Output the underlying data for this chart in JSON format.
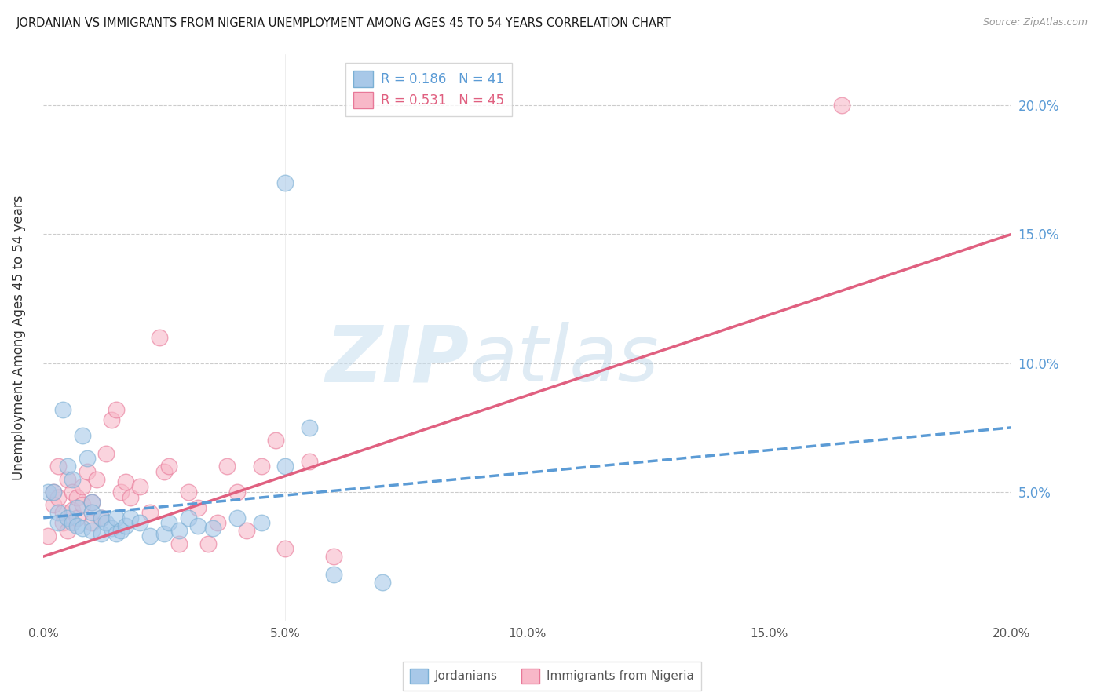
{
  "title": "JORDANIAN VS IMMIGRANTS FROM NIGERIA UNEMPLOYMENT AMONG AGES 45 TO 54 YEARS CORRELATION CHART",
  "source": "Source: ZipAtlas.com",
  "ylabel": "Unemployment Among Ages 45 to 54 years",
  "xlim": [
    0.0,
    0.2
  ],
  "ylim": [
    0.0,
    0.22
  ],
  "watermark_zip": "ZIP",
  "watermark_atlas": "atlas",
  "jordanian_color": "#a8c8e8",
  "jordan_edge_color": "#7aafd4",
  "nigeria_color": "#f8b8c8",
  "nigeria_edge_color": "#e87898",
  "trend_jordan_color": "#5b9bd5",
  "trend_nigeria_color": "#e06080",
  "jordanian_R": "0.186",
  "jordanian_N": "41",
  "nigeria_R": "0.531",
  "nigeria_N": "45",
  "trend_jordan_x0": 0.0,
  "trend_jordan_y0": 0.04,
  "trend_jordan_x1": 0.2,
  "trend_jordan_y1": 0.075,
  "trend_nigeria_x0": 0.0,
  "trend_nigeria_y0": 0.025,
  "trend_nigeria_x1": 0.2,
  "trend_nigeria_y1": 0.15,
  "jordanian_points": [
    [
      0.001,
      0.05
    ],
    [
      0.002,
      0.05
    ],
    [
      0.003,
      0.042
    ],
    [
      0.003,
      0.038
    ],
    [
      0.004,
      0.082
    ],
    [
      0.005,
      0.06
    ],
    [
      0.005,
      0.04
    ],
    [
      0.006,
      0.038
    ],
    [
      0.006,
      0.055
    ],
    [
      0.007,
      0.044
    ],
    [
      0.007,
      0.037
    ],
    [
      0.008,
      0.072
    ],
    [
      0.008,
      0.036
    ],
    [
      0.009,
      0.063
    ],
    [
      0.01,
      0.035
    ],
    [
      0.01,
      0.046
    ],
    [
      0.01,
      0.042
    ],
    [
      0.012,
      0.04
    ],
    [
      0.012,
      0.034
    ],
    [
      0.013,
      0.038
    ],
    [
      0.014,
      0.036
    ],
    [
      0.015,
      0.04
    ],
    [
      0.015,
      0.034
    ],
    [
      0.016,
      0.035
    ],
    [
      0.017,
      0.037
    ],
    [
      0.018,
      0.04
    ],
    [
      0.02,
      0.038
    ],
    [
      0.022,
      0.033
    ],
    [
      0.025,
      0.034
    ],
    [
      0.026,
      0.038
    ],
    [
      0.028,
      0.035
    ],
    [
      0.03,
      0.04
    ],
    [
      0.032,
      0.037
    ],
    [
      0.035,
      0.036
    ],
    [
      0.04,
      0.04
    ],
    [
      0.045,
      0.038
    ],
    [
      0.05,
      0.06
    ],
    [
      0.055,
      0.075
    ],
    [
      0.06,
      0.018
    ],
    [
      0.07,
      0.015
    ],
    [
      0.05,
      0.17
    ]
  ],
  "nigeria_points": [
    [
      0.001,
      0.033
    ],
    [
      0.002,
      0.05
    ],
    [
      0.002,
      0.045
    ],
    [
      0.003,
      0.048
    ],
    [
      0.003,
      0.06
    ],
    [
      0.004,
      0.042
    ],
    [
      0.004,
      0.038
    ],
    [
      0.005,
      0.055
    ],
    [
      0.005,
      0.035
    ],
    [
      0.006,
      0.043
    ],
    [
      0.006,
      0.05
    ],
    [
      0.007,
      0.048
    ],
    [
      0.007,
      0.04
    ],
    [
      0.008,
      0.052
    ],
    [
      0.008,
      0.045
    ],
    [
      0.009,
      0.058
    ],
    [
      0.01,
      0.038
    ],
    [
      0.01,
      0.046
    ],
    [
      0.011,
      0.055
    ],
    [
      0.012,
      0.04
    ],
    [
      0.013,
      0.065
    ],
    [
      0.014,
      0.078
    ],
    [
      0.015,
      0.082
    ],
    [
      0.016,
      0.05
    ],
    [
      0.017,
      0.054
    ],
    [
      0.018,
      0.048
    ],
    [
      0.02,
      0.052
    ],
    [
      0.022,
      0.042
    ],
    [
      0.024,
      0.11
    ],
    [
      0.025,
      0.058
    ],
    [
      0.026,
      0.06
    ],
    [
      0.028,
      0.03
    ],
    [
      0.03,
      0.05
    ],
    [
      0.032,
      0.044
    ],
    [
      0.034,
      0.03
    ],
    [
      0.036,
      0.038
    ],
    [
      0.038,
      0.06
    ],
    [
      0.04,
      0.05
    ],
    [
      0.042,
      0.035
    ],
    [
      0.045,
      0.06
    ],
    [
      0.048,
      0.07
    ],
    [
      0.05,
      0.028
    ],
    [
      0.055,
      0.062
    ],
    [
      0.06,
      0.025
    ],
    [
      0.165,
      0.2
    ]
  ]
}
